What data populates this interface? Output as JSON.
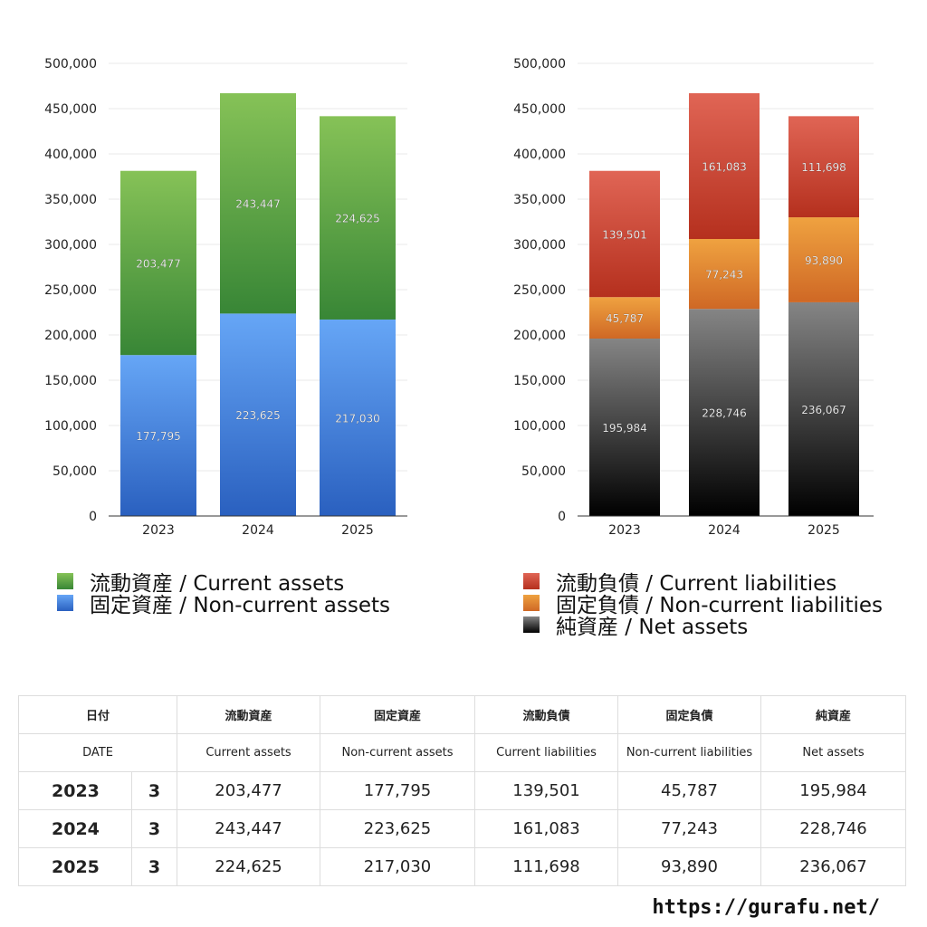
{
  "chart_data": [
    {
      "type": "bar",
      "stacked": true,
      "categories": [
        "2023",
        "2024",
        "2025"
      ],
      "ylim": [
        0,
        500000
      ],
      "yticks": [
        "0",
        "50,000",
        "100,000",
        "150,000",
        "200,000",
        "250,000",
        "300,000",
        "350,000",
        "400,000",
        "450,000",
        "500,000"
      ],
      "grid": true,
      "legend_position": "bottom",
      "series": [
        {
          "name": "固定資産 / Non-current assets",
          "values": [
            177795,
            223625,
            217030
          ],
          "labels": [
            "177,795",
            "223,625",
            "217,030"
          ],
          "color": "#4a8be0"
        },
        {
          "name": "流動資産 / Current assets",
          "values": [
            203477,
            243447,
            224625
          ],
          "labels": [
            "203,477",
            "243,447",
            "224,625"
          ],
          "color": "#5aa545"
        }
      ],
      "legend_order": [
        1,
        0
      ]
    },
    {
      "type": "bar",
      "stacked": true,
      "categories": [
        "2023",
        "2024",
        "2025"
      ],
      "ylim": [
        0,
        500000
      ],
      "yticks": [
        "0",
        "50,000",
        "100,000",
        "150,000",
        "200,000",
        "250,000",
        "300,000",
        "350,000",
        "400,000",
        "450,000",
        "500,000"
      ],
      "grid": true,
      "legend_position": "bottom",
      "series": [
        {
          "name": "純資産 / Net assets",
          "values": [
            195984,
            228746,
            236067
          ],
          "labels": [
            "195,984",
            "228,746",
            "236,067"
          ],
          "color": "#333333"
        },
        {
          "name": "固定負債 / Non-current liabilities",
          "values": [
            45787,
            77243,
            93890
          ],
          "labels": [
            "45,787",
            "77,243",
            "93,890"
          ],
          "color": "#e08a35"
        },
        {
          "name": "流動負債 / Current liabilities",
          "values": [
            139501,
            161083,
            111698
          ],
          "labels": [
            "139,501",
            "161,083",
            "111,698"
          ],
          "color": "#d04a38"
        }
      ],
      "legend_order": [
        2,
        1,
        0
      ]
    }
  ],
  "table": {
    "header_jp": [
      "日付",
      "流動資産",
      "固定資産",
      "流動負債",
      "固定負債",
      "純資産"
    ],
    "header_en": [
      "DATE",
      "Current assets",
      "Non-current assets",
      "Current liabilities",
      "Non-current liabilities",
      "Net assets"
    ],
    "rows": [
      [
        "2023",
        "3",
        "203,477",
        "177,795",
        "139,501",
        "45,787",
        "195,984"
      ],
      [
        "2024",
        "3",
        "243,447",
        "223,625",
        "161,083",
        "77,243",
        "228,746"
      ],
      [
        "2025",
        "3",
        "224,625",
        "217,030",
        "111,698",
        "93,890",
        "236,067"
      ]
    ]
  },
  "footer": "https://gurafu.net/"
}
